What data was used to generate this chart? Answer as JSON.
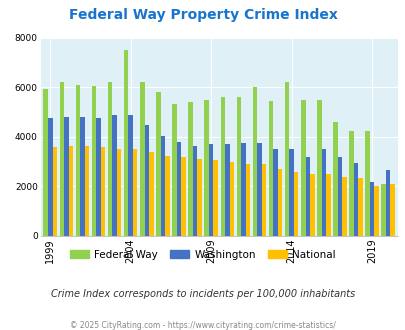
{
  "title": "Federal Way Property Crime Index",
  "title_color": "#1874cd",
  "years": [
    1999,
    2000,
    2001,
    2002,
    2003,
    2004,
    2005,
    2006,
    2007,
    2008,
    2009,
    2010,
    2011,
    2012,
    2013,
    2014,
    2015,
    2016,
    2017,
    2018,
    2019,
    2020
  ],
  "federal_way": [
    5950,
    6200,
    6100,
    6050,
    6200,
    7500,
    6200,
    5800,
    5350,
    5400,
    5500,
    5600,
    5600,
    6000,
    5450,
    6200,
    5500,
    5500,
    4600,
    4250,
    4250,
    2100
  ],
  "washington": [
    4750,
    4800,
    4800,
    4750,
    4900,
    4900,
    4500,
    4050,
    3800,
    3650,
    3700,
    3700,
    3750,
    3750,
    3500,
    3500,
    3200,
    3500,
    3200,
    2950,
    2200,
    2650
  ],
  "national": [
    3600,
    3650,
    3650,
    3600,
    3500,
    3500,
    3400,
    3250,
    3200,
    3100,
    3050,
    3000,
    2900,
    2900,
    2700,
    2600,
    2500,
    2500,
    2400,
    2350,
    2000,
    2100
  ],
  "fw_color": "#92d050",
  "wa_color": "#4472c4",
  "nat_color": "#ffc000",
  "plot_bg": "#dff0f7",
  "ylim": [
    0,
    8000
  ],
  "yticks": [
    0,
    2000,
    4000,
    6000,
    8000
  ],
  "xtick_years": [
    1999,
    2004,
    2009,
    2014,
    2019
  ],
  "subtitle": "Crime Index corresponds to incidents per 100,000 inhabitants",
  "footer": "© 2025 CityRating.com - https://www.cityrating.com/crime-statistics/",
  "subtitle_color": "#333333",
  "footer_color": "#888888",
  "grid_color": "#ffffff",
  "bar_width": 0.28
}
